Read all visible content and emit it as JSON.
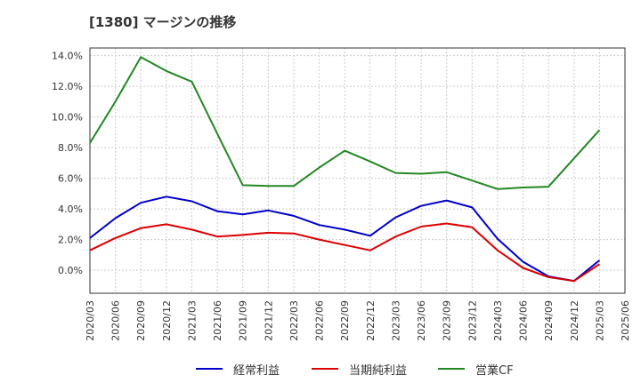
{
  "chart_data": {
    "type": "line",
    "title": "[1380]  マージンの推移",
    "categories": [
      "2020/03",
      "2020/06",
      "2020/09",
      "2020/12",
      "2021/03",
      "2021/06",
      "2021/09",
      "2021/12",
      "2022/03",
      "2022/06",
      "2022/09",
      "2022/12",
      "2023/03",
      "2023/06",
      "2023/09",
      "2023/12",
      "2024/03",
      "2024/06",
      "2024/09",
      "2024/12",
      "2025/03",
      "2025/06"
    ],
    "y_ticks": [
      "14.0%",
      "12.0%",
      "10.0%",
      "8.0%",
      "6.0%",
      "4.0%",
      "2.0%",
      "0.0%"
    ],
    "ylim": [
      -1.5,
      14.5
    ],
    "grid": true,
    "legend_position": "bottom",
    "series": [
      {
        "name": "経常利益",
        "color": "#0000cc",
        "values": [
          2.1,
          3.4,
          4.4,
          4.8,
          4.5,
          3.85,
          3.65,
          3.9,
          3.55,
          2.95,
          2.65,
          2.25,
          3.45,
          4.2,
          4.55,
          4.1,
          2.05,
          0.55,
          -0.4,
          -0.7,
          0.65,
          null
        ]
      },
      {
        "name": "当期純利益",
        "color": "#dd0000",
        "values": [
          1.3,
          2.1,
          2.75,
          3.0,
          2.65,
          2.2,
          2.3,
          2.45,
          2.4,
          2.0,
          1.65,
          1.3,
          2.2,
          2.85,
          3.05,
          2.8,
          1.3,
          0.15,
          -0.45,
          -0.7,
          0.4,
          null
        ]
      },
      {
        "name": "営業CF",
        "color": "#228822",
        "values": [
          8.3,
          11.0,
          13.9,
          13.0,
          12.3,
          8.9,
          5.55,
          5.5,
          5.5,
          6.7,
          7.8,
          7.1,
          6.35,
          6.3,
          6.4,
          5.85,
          5.3,
          5.4,
          5.45,
          7.3,
          9.15,
          null
        ]
      }
    ]
  }
}
